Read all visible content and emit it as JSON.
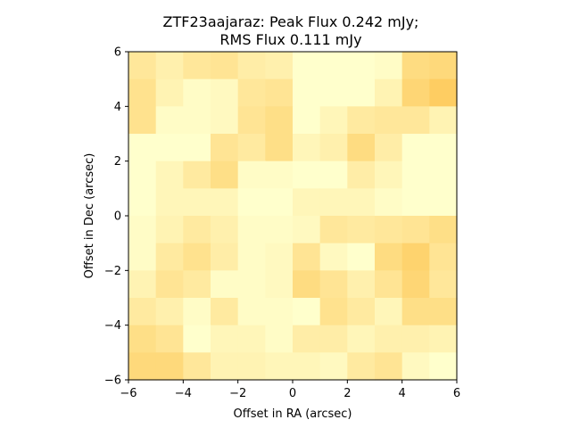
{
  "chart_data": {
    "type": "heatmap",
    "title_line1": "ZTF23aajaraz: Peak Flux 0.242 mJy;",
    "title_line2": "RMS Flux 0.111 mJy",
    "xlabel": "Offset in RA (arcsec)",
    "ylabel": "Offset in Dec (arcsec)",
    "xlim": [
      -6,
      6
    ],
    "ylim": [
      -6,
      6
    ],
    "xticks": [
      -6,
      -4,
      -2,
      0,
      2,
      4,
      6
    ],
    "yticks": [
      -6,
      -4,
      -2,
      0,
      2,
      4,
      6
    ],
    "xtick_labels": [
      "−6",
      "−4",
      "−2",
      "0",
      "2",
      "4",
      "6"
    ],
    "ytick_labels": [
      "−6",
      "−4",
      "−2",
      "0",
      "2",
      "4",
      "6"
    ],
    "colormap": "YlOrBr",
    "color_low": "#ffffcc",
    "color_high": "#fec44f",
    "grid": false,
    "rows": 12,
    "cols": 12,
    "row_order": "top-to-bottom",
    "values": [
      [
        0.4,
        0.25,
        0.4,
        0.45,
        0.3,
        0.25,
        0.0,
        0.0,
        0.0,
        0.05,
        0.6,
        0.65
      ],
      [
        0.5,
        0.2,
        0.05,
        0.1,
        0.4,
        0.45,
        0.0,
        0.0,
        0.0,
        0.2,
        0.7,
        0.85
      ],
      [
        0.5,
        0.05,
        0.05,
        0.1,
        0.45,
        0.55,
        0.0,
        0.15,
        0.35,
        0.4,
        0.4,
        0.2
      ],
      [
        0.0,
        0.0,
        0.0,
        0.45,
        0.35,
        0.55,
        0.15,
        0.25,
        0.6,
        0.3,
        0.0,
        0.0
      ],
      [
        0.0,
        0.15,
        0.35,
        0.55,
        0.05,
        0.05,
        0.0,
        0.0,
        0.3,
        0.15,
        0.0,
        0.0
      ],
      [
        0.0,
        0.15,
        0.15,
        0.15,
        0.0,
        0.0,
        0.15,
        0.15,
        0.15,
        0.05,
        0.0,
        0.0
      ],
      [
        0.05,
        0.2,
        0.35,
        0.25,
        0.05,
        0.05,
        0.1,
        0.4,
        0.35,
        0.4,
        0.45,
        0.55
      ],
      [
        0.05,
        0.35,
        0.5,
        0.3,
        0.05,
        0.1,
        0.45,
        0.1,
        0.0,
        0.6,
        0.75,
        0.45
      ],
      [
        0.2,
        0.45,
        0.35,
        0.05,
        0.05,
        0.1,
        0.6,
        0.45,
        0.25,
        0.45,
        0.7,
        0.4
      ],
      [
        0.35,
        0.25,
        0.05,
        0.35,
        0.05,
        0.05,
        0.0,
        0.5,
        0.35,
        0.15,
        0.55,
        0.55
      ],
      [
        0.55,
        0.45,
        0.0,
        0.15,
        0.15,
        0.05,
        0.3,
        0.3,
        0.15,
        0.25,
        0.25,
        0.2
      ],
      [
        0.65,
        0.65,
        0.4,
        0.2,
        0.2,
        0.15,
        0.15,
        0.1,
        0.35,
        0.45,
        0.1,
        0.0
      ]
    ]
  }
}
